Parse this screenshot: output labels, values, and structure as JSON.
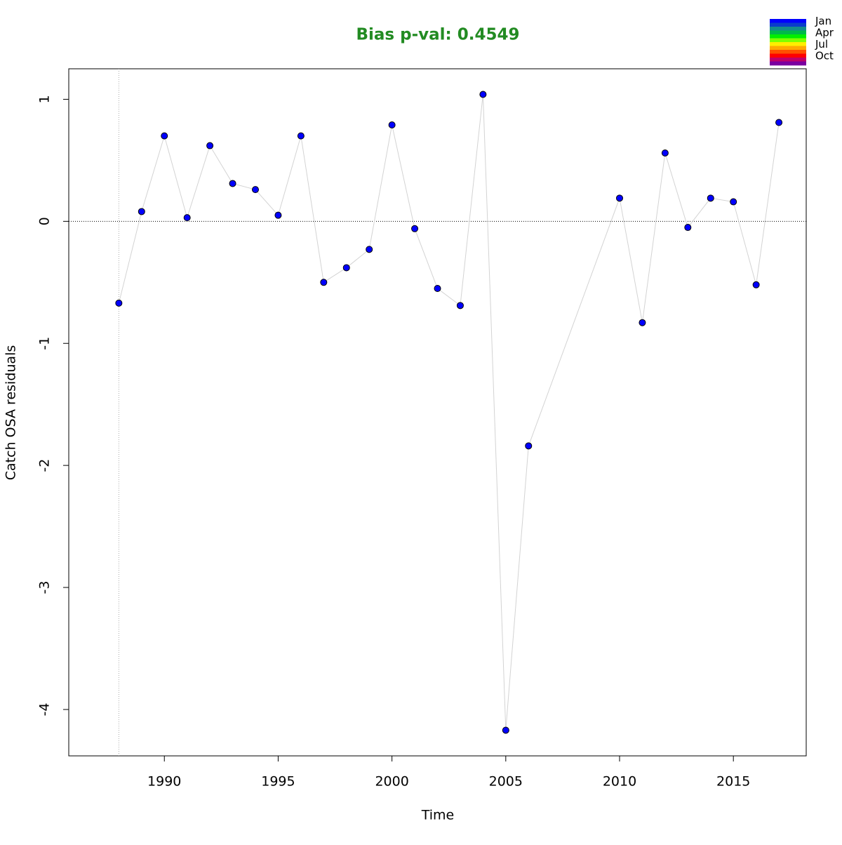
{
  "chart_data": {
    "type": "scatter",
    "title": "Bias p-val: 0.4549",
    "title_color": "#228b22",
    "x_label": "Time",
    "y_label": "Catch OSA residuals",
    "x": [
      1988,
      1989,
      1990,
      1991,
      1992,
      1993,
      1994,
      1995,
      1996,
      1997,
      1998,
      1999,
      2000,
      2001,
      2002,
      2003,
      2004,
      2005,
      2006,
      2010,
      2011,
      2012,
      2013,
      2014,
      2015,
      2016,
      2017
    ],
    "series": [
      {
        "color": "#0000ff",
        "line_color": "#d3d3d3",
        "values": [
          -0.67,
          0.08,
          0.7,
          0.03,
          0.62,
          0.31,
          0.26,
          0.05,
          0.7,
          -0.5,
          -0.38,
          -0.23,
          0.79,
          -0.06,
          -0.55,
          -0.69,
          1.04,
          -4.17,
          -1.84,
          0.19,
          -0.83,
          0.56,
          -0.05,
          0.19,
          0.16,
          -0.52,
          0.81
        ]
      }
    ],
    "xlim": [
      1985.8,
      2018.2
    ],
    "ylim": [
      -4.38,
      1.25
    ],
    "xticks": [
      1990,
      1995,
      2000,
      2005,
      2010,
      2015
    ],
    "yticks": [
      -4,
      -3,
      -2,
      -1,
      0,
      1
    ],
    "hline": 0,
    "vline": 1988,
    "legend": {
      "position": "top-right",
      "labels": [
        "Jan",
        "Apr",
        "Jul",
        "Oct"
      ],
      "colors": [
        "#0000ff",
        "#0a3ccc",
        "#148c8c",
        "#00b84a",
        "#00ee00",
        "#7fff00",
        "#ffee00",
        "#ffaa00",
        "#ff5000",
        "#ff0000",
        "#c0006a",
        "#7a00a0"
      ]
    }
  }
}
